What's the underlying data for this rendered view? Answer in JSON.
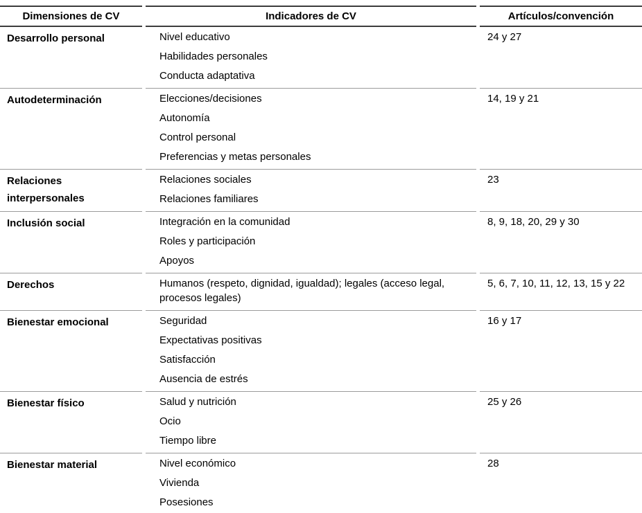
{
  "table": {
    "headers": [
      "Dimensiones de CV",
      "Indicadores de CV",
      "Artículos/convención"
    ],
    "rows": [
      {
        "dimension": "Desarrollo personal",
        "indicators": [
          "Nivel educativo",
          "Habilidades personales",
          "Conducta adaptativa"
        ],
        "articles": "24 y 27"
      },
      {
        "dimension": "Autodeterminación",
        "indicators": [
          "Elecciones/decisiones",
          "Autonomía",
          "Control personal",
          "Preferencias y metas personales"
        ],
        "articles": "14, 19 y 21"
      },
      {
        "dimension": "Relaciones interpersonales",
        "indicators": [
          "Relaciones sociales",
          "Relaciones familiares"
        ],
        "articles": "23"
      },
      {
        "dimension": "Inclusión social",
        "indicators": [
          "Integración en la comunidad",
          "Roles y participación",
          "Apoyos"
        ],
        "articles": "8, 9, 18, 20, 29 y 30"
      },
      {
        "dimension": "Derechos",
        "indicators": [
          "Humanos (respeto, dignidad, igualdad); legales (acceso legal, procesos legales)"
        ],
        "articles": "5, 6, 7, 10, 11, 12, 13, 15 y 22"
      },
      {
        "dimension": "Bienestar emocional",
        "indicators": [
          "Seguridad",
          "Expectativas positivas",
          "Satisfacción",
          "Ausencia de estrés"
        ],
        "articles": "16 y 17"
      },
      {
        "dimension": "Bienestar físico",
        "indicators": [
          "Salud y nutrición",
          "Ocio",
          "Tiempo libre"
        ],
        "articles": "25 y 26"
      },
      {
        "dimension": "Bienestar material",
        "indicators": [
          "Nivel económico",
          "Vivienda",
          "Posesiones"
        ],
        "articles": "28"
      }
    ],
    "colors": {
      "header_rule": "#3b3b3b",
      "row_rule": "#9a9a9a",
      "text": "#000000",
      "background": "#ffffff"
    }
  }
}
